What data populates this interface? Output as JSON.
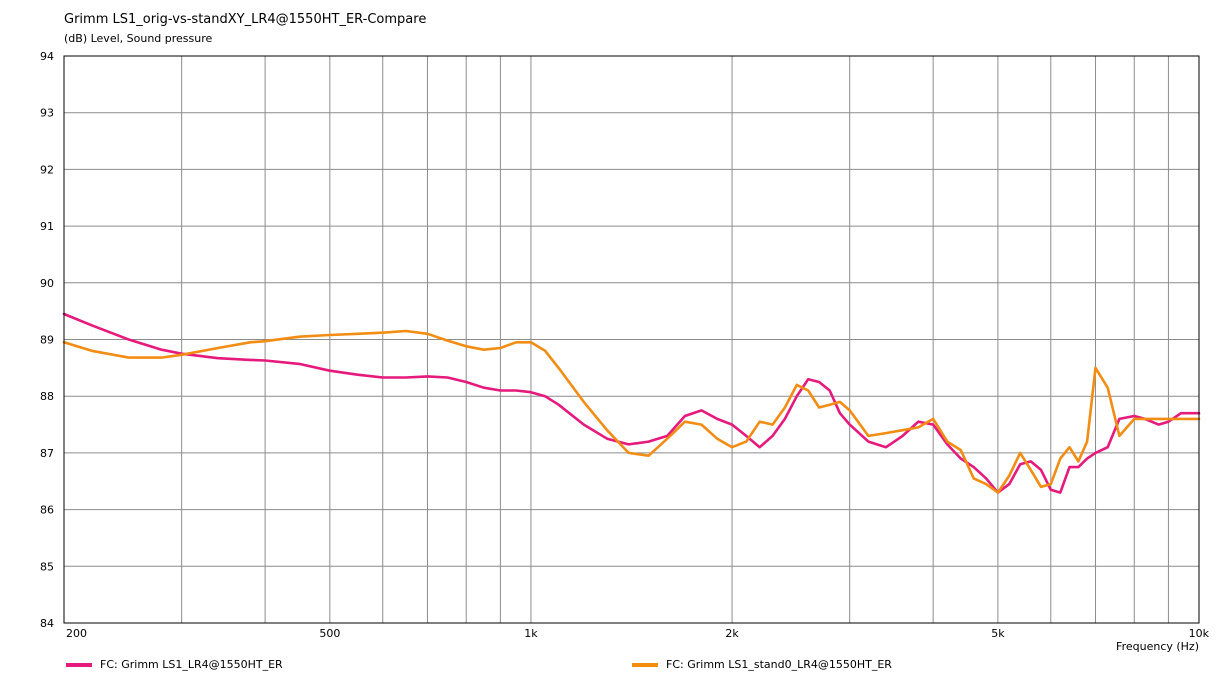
{
  "chart_data": {
    "type": "line",
    "title": "Grimm LS1_orig-vs-standXY_LR4@1550HT_ER-Compare",
    "ylabel": "(dB)  Level, Sound pressure",
    "xlabel": "Frequency  (Hz)",
    "xscale": "log",
    "xlim": [
      200,
      10000
    ],
    "ylim": [
      84,
      94
    ],
    "grid": true,
    "legend_position": "bottom",
    "y_ticks": [
      "84",
      "85",
      "86",
      "87",
      "88",
      "89",
      "90",
      "91",
      "92",
      "93",
      "94"
    ],
    "x_ticks": [
      {
        "value": 200,
        "label": "200"
      },
      {
        "value": 500,
        "label": "500"
      },
      {
        "value": 1000,
        "label": "1k"
      },
      {
        "value": 2000,
        "label": "2k"
      },
      {
        "value": 5000,
        "label": "5k"
      },
      {
        "value": 10000,
        "label": "10k"
      }
    ],
    "series": [
      {
        "name": "FC: Grimm LS1_LR4@1550HT_ER",
        "color": "#e6197c",
        "x": [
          200,
          220,
          250,
          280,
          300,
          340,
          380,
          400,
          450,
          500,
          550,
          600,
          650,
          700,
          750,
          800,
          850,
          900,
          950,
          1000,
          1050,
          1100,
          1200,
          1300,
          1400,
          1500,
          1600,
          1700,
          1800,
          1900,
          2000,
          2100,
          2200,
          2300,
          2400,
          2500,
          2600,
          2700,
          2800,
          2900,
          3000,
          3200,
          3400,
          3600,
          3800,
          4000,
          4200,
          4400,
          4600,
          4800,
          5000,
          5200,
          5400,
          5600,
          5800,
          6000,
          6200,
          6400,
          6600,
          6800,
          7000,
          7300,
          7600,
          8000,
          8300,
          8700,
          9000,
          9400,
          10000
        ],
        "y": [
          89.45,
          89.25,
          89.0,
          88.82,
          88.75,
          88.67,
          88.64,
          88.63,
          88.57,
          88.45,
          88.38,
          88.33,
          88.33,
          88.35,
          88.33,
          88.25,
          88.15,
          88.1,
          88.1,
          88.07,
          88.0,
          87.85,
          87.5,
          87.25,
          87.15,
          87.2,
          87.3,
          87.65,
          87.75,
          87.6,
          87.5,
          87.3,
          87.1,
          87.3,
          87.6,
          88.0,
          88.3,
          88.25,
          88.1,
          87.7,
          87.5,
          87.2,
          87.1,
          87.3,
          87.55,
          87.5,
          87.15,
          86.9,
          86.75,
          86.55,
          86.3,
          86.45,
          86.8,
          86.85,
          86.7,
          86.35,
          86.3,
          86.75,
          86.75,
          86.9,
          87.0,
          87.1,
          87.6,
          87.65,
          87.6,
          87.5,
          87.55,
          87.7,
          87.7
        ]
      },
      {
        "name": "FC: Grimm LS1_stand0_LR4@1550HT_ER",
        "color": "#f28c13",
        "x": [
          200,
          220,
          250,
          280,
          300,
          340,
          380,
          400,
          450,
          500,
          550,
          600,
          650,
          700,
          750,
          800,
          850,
          900,
          950,
          1000,
          1050,
          1100,
          1200,
          1300,
          1400,
          1500,
          1600,
          1700,
          1800,
          1900,
          2000,
          2100,
          2200,
          2300,
          2400,
          2500,
          2600,
          2700,
          2800,
          2900,
          3000,
          3200,
          3400,
          3600,
          3800,
          4000,
          4200,
          4400,
          4600,
          4800,
          5000,
          5200,
          5400,
          5600,
          5800,
          6000,
          6200,
          6400,
          6600,
          6800,
          7000,
          7300,
          7600,
          8000,
          8300,
          8700,
          9000,
          9400,
          10000
        ],
        "y": [
          88.95,
          88.8,
          88.68,
          88.68,
          88.73,
          88.85,
          88.95,
          88.97,
          89.05,
          89.08,
          89.1,
          89.12,
          89.15,
          89.1,
          88.98,
          88.88,
          88.82,
          88.85,
          88.95,
          88.95,
          88.8,
          88.5,
          87.9,
          87.4,
          87.0,
          86.95,
          87.25,
          87.55,
          87.5,
          87.25,
          87.1,
          87.2,
          87.55,
          87.5,
          87.8,
          88.2,
          88.1,
          87.8,
          87.85,
          87.9,
          87.75,
          87.3,
          87.35,
          87.4,
          87.45,
          87.6,
          87.2,
          87.05,
          86.55,
          86.45,
          86.3,
          86.6,
          87.0,
          86.7,
          86.4,
          86.45,
          86.9,
          87.1,
          86.85,
          87.2,
          88.5,
          88.15,
          87.3,
          87.6,
          87.6,
          87.6,
          87.6,
          87.6,
          87.6
        ]
      }
    ]
  }
}
